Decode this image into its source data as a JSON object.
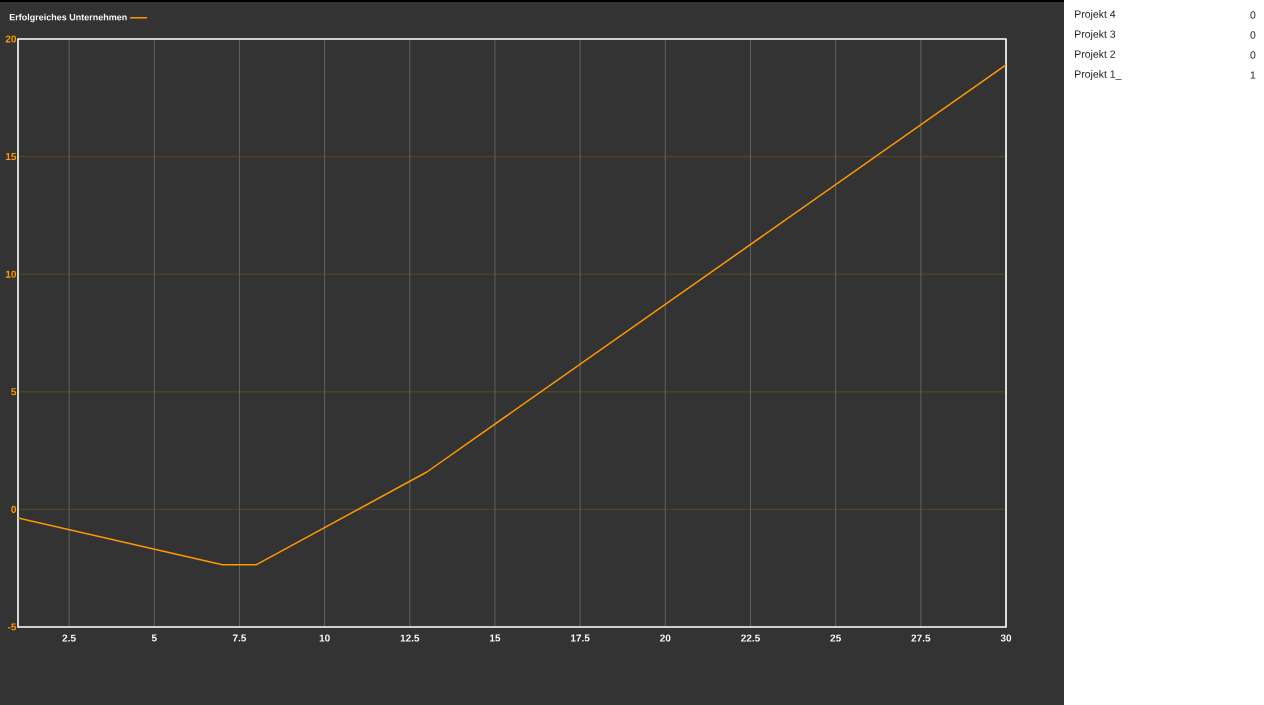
{
  "chart_data": {
    "type": "line",
    "x": [
      1,
      7,
      8,
      13,
      30
    ],
    "series": [
      {
        "name": "Erfolgreiches Unternehmen",
        "color": "#ff9900",
        "values": [
          -0.37,
          -2.35,
          -2.35,
          1.59,
          18.9
        ]
      }
    ],
    "xlim": [
      1,
      30
    ],
    "ylim": [
      -5,
      20
    ],
    "xticks": [
      2.5,
      5,
      7.5,
      10,
      12.5,
      15,
      17.5,
      20,
      22.5,
      25,
      27.5,
      30
    ],
    "yticks": [
      -5,
      0,
      5,
      10,
      15,
      20
    ],
    "grid": true,
    "legend": "top left",
    "marker": "none",
    "line_style": "solid",
    "annotations": [
      "Projekt 4",
      "0",
      "Projekt 3",
      "0",
      "Projekt 2",
      "0",
      "Projekt 1_",
      "1"
    ]
  }
}
